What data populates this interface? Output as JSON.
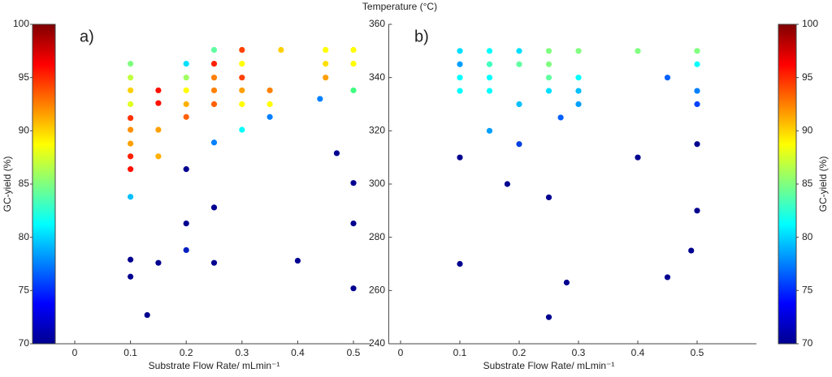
{
  "figure_title": "Temperature (°C)",
  "chart_data": [
    {
      "type": "scatter",
      "panel_label": "a)",
      "xlabel": "Substrate Flow Rate/ mLmin⁻¹",
      "ylabel": "GC-yield (%)",
      "xlim": [
        -0.035,
        0.53
      ],
      "ylim": [
        70,
        100
      ],
      "xticks": [
        0,
        0.1,
        0.2,
        0.3,
        0.4,
        0.5
      ],
      "yticks": [
        70,
        75,
        80,
        85,
        90,
        95,
        100
      ],
      "x": [
        0.1,
        0.1,
        0.1,
        0.1,
        0.1,
        0.1,
        0.1,
        0.1,
        0.1,
        0.1,
        0.1,
        0.1,
        0.13,
        0.15,
        0.15,
        0.15,
        0.15,
        0.15,
        0.2,
        0.2,
        0.2,
        0.2,
        0.2,
        0.2,
        0.2,
        0.2,
        0.25,
        0.25,
        0.25,
        0.25,
        0.25,
        0.25,
        0.25,
        0.25,
        0.3,
        0.3,
        0.3,
        0.3,
        0.3,
        0.3,
        0.35,
        0.35,
        0.35,
        0.37,
        0.4,
        0.44,
        0.45,
        0.45,
        0.45,
        0.47,
        0.5,
        0.5,
        0.5,
        0.5,
        0.5,
        0.5
      ],
      "y": [
        96.3,
        95.0,
        93.8,
        92.5,
        91.2,
        90.1,
        88.8,
        87.6,
        86.4,
        83.8,
        77.9,
        76.3,
        72.7,
        93.8,
        92.6,
        90.1,
        87.6,
        77.6,
        96.3,
        95.0,
        93.8,
        92.5,
        91.3,
        86.4,
        81.3,
        78.8,
        97.6,
        96.3,
        95.0,
        93.8,
        92.5,
        88.9,
        82.8,
        77.6,
        97.6,
        96.3,
        95.0,
        93.8,
        92.5,
        90.1,
        93.8,
        92.5,
        91.3,
        97.6,
        77.8,
        93.0,
        97.6,
        96.3,
        95.0,
        87.9,
        97.6,
        96.3,
        93.8,
        85.1,
        81.3,
        75.2
      ],
      "colors": [
        "#80ff80",
        "#c0ff40",
        "#ffd000",
        "#e0ff20",
        "#ff3000",
        "#ff9000",
        "#ffa000",
        "#ff2000",
        "#ff1000",
        "#00c0ff",
        "#000090",
        "#000090",
        "#000090",
        "#ff1000",
        "#ff1000",
        "#ffa000",
        "#ffb000",
        "#000090",
        "#00e0ff",
        "#a0ff60",
        "#ffff00",
        "#ffb000",
        "#ff6000",
        "#000090",
        "#000090",
        "#0020c0",
        "#60ffa0",
        "#ff2000",
        "#ff8000",
        "#ff8000",
        "#ff6000",
        "#0080ff",
        "#000090",
        "#000090",
        "#ff4000",
        "#ffff00",
        "#ff4000",
        "#ffa000",
        "#ffff00",
        "#00ffff",
        "#ff8000",
        "#ffff00",
        "#0080ff",
        "#ffd000",
        "#000090",
        "#0080ff",
        "#ffff00",
        "#ffe000",
        "#ffa000",
        "#000090",
        "#ffff00",
        "#ffff00",
        "#40ff80",
        "#000090",
        "#000090",
        "#000090"
      ]
    },
    {
      "type": "scatter",
      "panel_label": "b)",
      "xlabel": "Substrate Flow Rate/ mLmin⁻¹",
      "xlim": [
        -0.02,
        0.6
      ],
      "ylim": [
        240,
        360
      ],
      "xticks": [
        0,
        0.1,
        0.2,
        0.3,
        0.4,
        0.5
      ],
      "yticks": [
        240,
        260,
        280,
        300,
        320,
        340,
        360
      ],
      "colorbar": {
        "label": "GC-yield (%)",
        "lim": [
          70,
          100
        ],
        "ticks": [
          70,
          75,
          80,
          85,
          90,
          95,
          100
        ]
      },
      "x": [
        0.1,
        0.1,
        0.1,
        0.1,
        0.1,
        0.1,
        0.15,
        0.15,
        0.15,
        0.15,
        0.15,
        0.18,
        0.2,
        0.2,
        0.2,
        0.2,
        0.25,
        0.25,
        0.25,
        0.25,
        0.25,
        0.25,
        0.27,
        0.28,
        0.3,
        0.3,
        0.3,
        0.3,
        0.4,
        0.4,
        0.45,
        0.45,
        0.49,
        0.5,
        0.5,
        0.5,
        0.5,
        0.5,
        0.5
      ],
      "y": [
        350,
        345,
        340,
        335,
        310,
        270,
        350,
        345,
        340,
        335,
        320,
        300,
        350,
        345,
        330,
        315,
        350,
        345,
        340,
        335,
        295,
        250,
        325,
        263,
        350,
        340,
        335,
        330,
        350,
        310,
        340,
        265,
        275,
        350,
        345,
        335,
        330,
        315,
        290
      ],
      "colors": [
        "#00e0ff",
        "#00a0ff",
        "#00ffff",
        "#00ffff",
        "#000090",
        "#000090",
        "#00ffff",
        "#40ffc0",
        "#00ffff",
        "#00ffff",
        "#00a0ff",
        "#000090",
        "#00e0ff",
        "#60ffa0",
        "#00c0ff",
        "#0040e0",
        "#80ff80",
        "#80ff80",
        "#60ffa0",
        "#00e0ff",
        "#000090",
        "#000090",
        "#0060ff",
        "#000090",
        "#80ff80",
        "#00ffff",
        "#00c0ff",
        "#00a0ff",
        "#80ff80",
        "#000090",
        "#0060ff",
        "#000090",
        "#000090",
        "#80ff80",
        "#00ffff",
        "#0080ff",
        "#0040ff",
        "#000090",
        "#000090"
      ]
    }
  ]
}
